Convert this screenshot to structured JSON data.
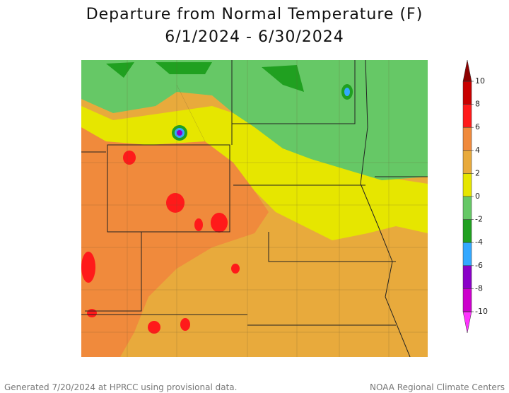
{
  "title": "Departure from Normal Temperature (F)",
  "subtitle": "6/1/2024 - 6/30/2024",
  "colorbar": {
    "ticks": [
      10,
      8,
      6,
      4,
      2,
      0,
      -2,
      -4,
      -6,
      -8,
      -10
    ],
    "colors": [
      "#ff33ff",
      "#cc00cc",
      "#8a00c8",
      "#33a8ff",
      "#20a020",
      "#66c866",
      "#e6e600",
      "#e8aa3c",
      "#f08a3c",
      "#ff1a1a",
      "#c80000",
      "#8c0000"
    ]
  },
  "footer": {
    "left": "Generated 7/20/2024 at HPRCC using provisional data.",
    "right": "NOAA Regional Climate Centers"
  }
}
